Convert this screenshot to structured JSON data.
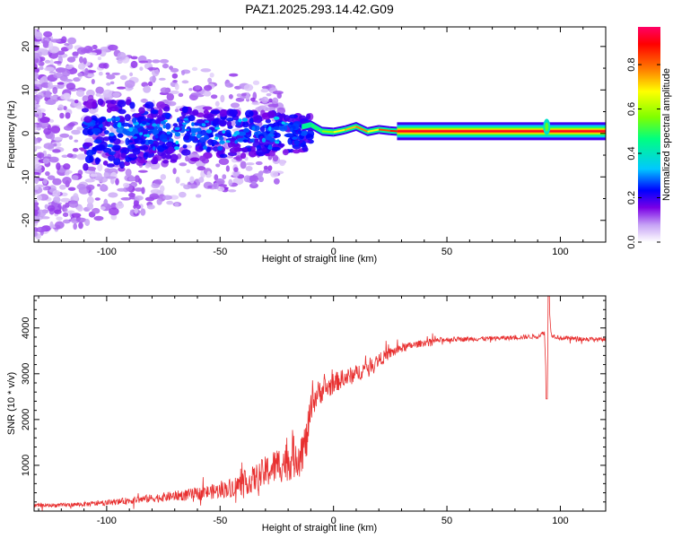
{
  "title": "PAZ1.2025.293.14.42.G09",
  "chart_data": [
    {
      "type": "heatmap",
      "name": "spectrogram",
      "xlabel": "Height of straight line (km)",
      "ylabel": "Frequency (Hz)",
      "xlim": [
        -132,
        120
      ],
      "ylim": [
        -25,
        24.5
      ],
      "xticks": [
        -100,
        -50,
        0,
        50,
        100
      ],
      "xtick_labels": [
        "-100",
        "-50",
        "0",
        "50",
        "100"
      ],
      "yticks": [
        -20,
        -10,
        0,
        10,
        20
      ],
      "ytick_labels": [
        "-20",
        "-10",
        "0",
        "10",
        "20"
      ],
      "colorbar": {
        "label": "Normalized spectral amplitude",
        "range": [
          0.0,
          0.97
        ],
        "ticks": [
          0.0,
          0.2,
          0.4,
          0.6,
          0.8
        ],
        "tick_labels": [
          "0.0",
          "0.2",
          "0.4",
          "0.6",
          "0.8"
        ],
        "colormap": [
          "#ffffff",
          "#c6a2f5",
          "#7a00e6",
          "#0000ff",
          "#00c8ff",
          "#00ff80",
          "#7fff00",
          "#ffff00",
          "#ff8000",
          "#ff0000",
          "#ff0066"
        ]
      },
      "main_line": {
        "description_values": "strong tone from x=28 to x=120 at ~0.5 Hz",
        "x_start": 28,
        "x_end": 120,
        "frequency": 0.5,
        "amplitude": 0.95
      },
      "transition_segments": [
        {
          "x": [
            -14,
            -10,
            -5,
            0,
            5,
            10,
            15,
            20,
            25,
            28
          ],
          "frequency": [
            1.5,
            2.0,
            0.5,
            0.3,
            0.8,
            1.6,
            0.4,
            0.9,
            0.6,
            0.5
          ],
          "amplitude": [
            0.45,
            0.5,
            0.6,
            0.7,
            0.75,
            0.8,
            0.7,
            0.85,
            0.9,
            0.95
          ]
        }
      ],
      "glitch": {
        "x": 94,
        "frequency": 1.5,
        "amplitude": 0.55
      }
    },
    {
      "type": "line",
      "name": "snr",
      "xlabel": "Height of straight line (km)",
      "ylabel": "SNR (10 * v/v)",
      "xlim": [
        -132,
        120
      ],
      "ylim": [
        0,
        4700
      ],
      "xticks": [
        -100,
        -50,
        0,
        50,
        100
      ],
      "xtick_labels": [
        "-100",
        "-50",
        "0",
        "50",
        "100"
      ],
      "yticks": [
        1000,
        2000,
        3000,
        4000
      ],
      "ytick_labels": [
        "1000",
        "2000",
        "3000",
        "4000"
      ],
      "color": "#e83030",
      "series": [
        {
          "name": "SNR",
          "x": [
            -132,
            -120,
            -110,
            -100,
            -90,
            -80,
            -70,
            -60,
            -50,
            -45,
            -40,
            -35,
            -30,
            -25,
            -20,
            -15,
            -12,
            -10,
            -8,
            -5,
            -2,
            0,
            5,
            10,
            15,
            20,
            25,
            30,
            35,
            40,
            45,
            50,
            60,
            70,
            80,
            90,
            93,
            94,
            95,
            96,
            100,
            110,
            120
          ],
          "y": [
            120,
            130,
            150,
            180,
            230,
            280,
            330,
            380,
            450,
            520,
            600,
            700,
            850,
            1000,
            1100,
            1250,
            1500,
            2200,
            2500,
            2650,
            2700,
            2800,
            2900,
            3000,
            3150,
            3300,
            3450,
            3560,
            3620,
            3680,
            3720,
            3750,
            3760,
            3770,
            3790,
            3820,
            3900,
            2500,
            4500,
            3850,
            3780,
            3760,
            3740
          ],
          "noise": [
            80,
            90,
            100,
            120,
            150,
            180,
            220,
            280,
            350,
            420,
            500,
            600,
            700,
            800,
            900,
            1000,
            900,
            700,
            600,
            550,
            500,
            450,
            400,
            380,
            350,
            300,
            250,
            200,
            160,
            140,
            120,
            110,
            100,
            100,
            100,
            100,
            100,
            0,
            0,
            100,
            100,
            100,
            100
          ]
        }
      ]
    }
  ]
}
